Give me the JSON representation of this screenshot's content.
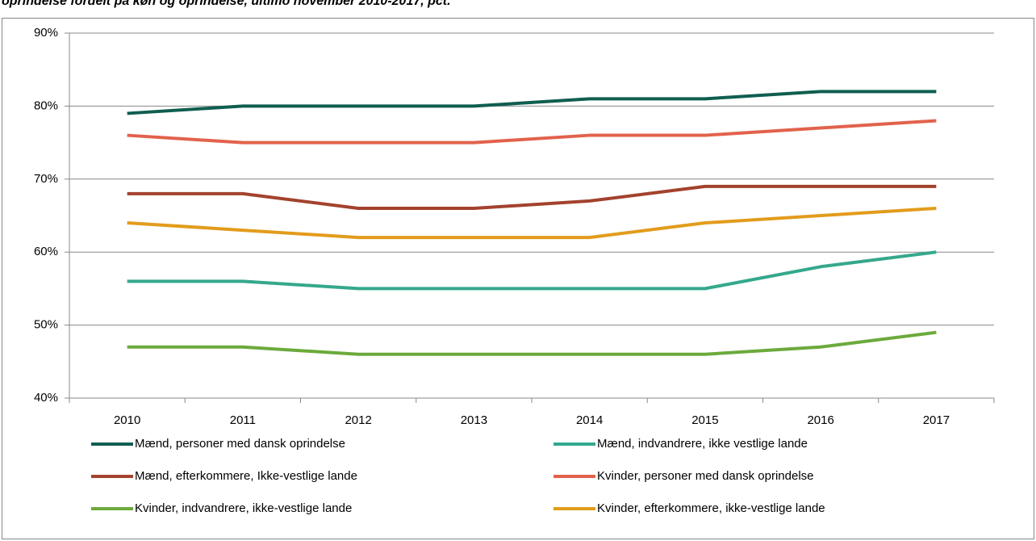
{
  "chart_data": {
    "type": "line",
    "title": "oprindelse fordelt på køn og oprindelse, ultimo november 2010-2017, pct.",
    "categories": [
      "2010",
      "2011",
      "2012",
      "2013",
      "2014",
      "2015",
      "2016",
      "2017"
    ],
    "series": [
      {
        "name": "Mænd, personer med dansk oprindelse",
        "color": "#0f5e50",
        "values": [
          79,
          80,
          80,
          80,
          81,
          81,
          82,
          82
        ]
      },
      {
        "name": "Mænd, indvandrere, ikke vestlige lande",
        "color": "#35a88c",
        "values": [
          56,
          56,
          55,
          55,
          55,
          55,
          58,
          60
        ]
      },
      {
        "name": "Mænd, efterkommere, Ikke-vestlige lande",
        "color": "#a3422e",
        "values": [
          68,
          68,
          66,
          66,
          67,
          69,
          69,
          69
        ]
      },
      {
        "name": "Kvinder, personer med dansk oprindelse",
        "color": "#e2624c",
        "values": [
          76,
          75,
          75,
          75,
          76,
          76,
          77,
          78
        ]
      },
      {
        "name": "Kvinder, indvandrere, ikke-vestlige lande",
        "color": "#6caa3c",
        "values": [
          47,
          47,
          46,
          46,
          46,
          46,
          47,
          49
        ]
      },
      {
        "name": "Kvinder, efterkommere, ikke-vestlige lande",
        "color": "#e29c1c",
        "values": [
          64,
          63,
          62,
          62,
          62,
          64,
          65,
          66
        ]
      }
    ],
    "ylim": [
      40,
      90
    ],
    "yticks": [
      {
        "value": 40,
        "label": "40%"
      },
      {
        "value": 50,
        "label": "50%"
      },
      {
        "value": 60,
        "label": "60%"
      },
      {
        "value": 70,
        "label": "70%"
      },
      {
        "value": 80,
        "label": "80%"
      },
      {
        "value": 90,
        "label": "90%"
      }
    ],
    "grid": true
  }
}
